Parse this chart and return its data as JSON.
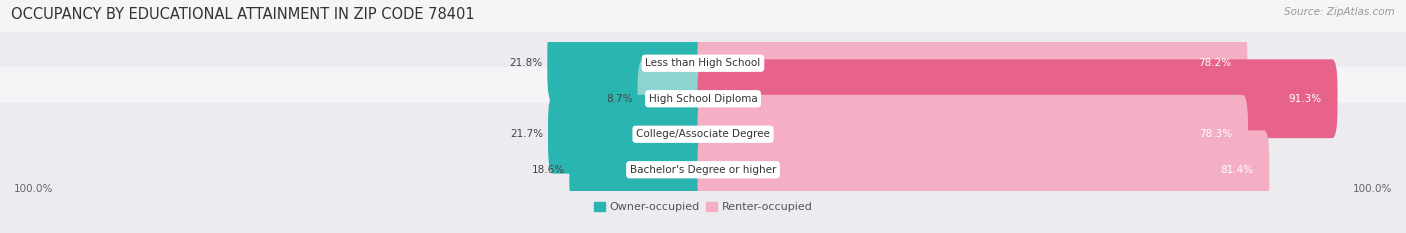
{
  "title": "OCCUPANCY BY EDUCATIONAL ATTAINMENT IN ZIP CODE 78401",
  "source": "Source: ZipAtlas.com",
  "categories": [
    "Less than High School",
    "High School Diploma",
    "College/Associate Degree",
    "Bachelor's Degree or higher"
  ],
  "owner_values": [
    21.8,
    8.7,
    21.7,
    18.6
  ],
  "renter_values": [
    78.2,
    91.3,
    78.3,
    81.4
  ],
  "owner_colors": [
    "#2bb5b0",
    "#8dd4d0",
    "#2bb5b0",
    "#2bb5b0"
  ],
  "renter_colors": [
    "#f5afc5",
    "#e8638a",
    "#f5afc5",
    "#f5afc5"
  ],
  "row_colors": [
    "#f5f5f8",
    "#ebebf0",
    "#f5f5f8",
    "#ebebf0"
  ],
  "bg_color": "#eeeeee",
  "title_fontsize": 10.5,
  "source_fontsize": 7.5,
  "label_fontsize": 7.5,
  "legend_fontsize": 8,
  "left_label": "100.0%",
  "right_label": "100.0%"
}
